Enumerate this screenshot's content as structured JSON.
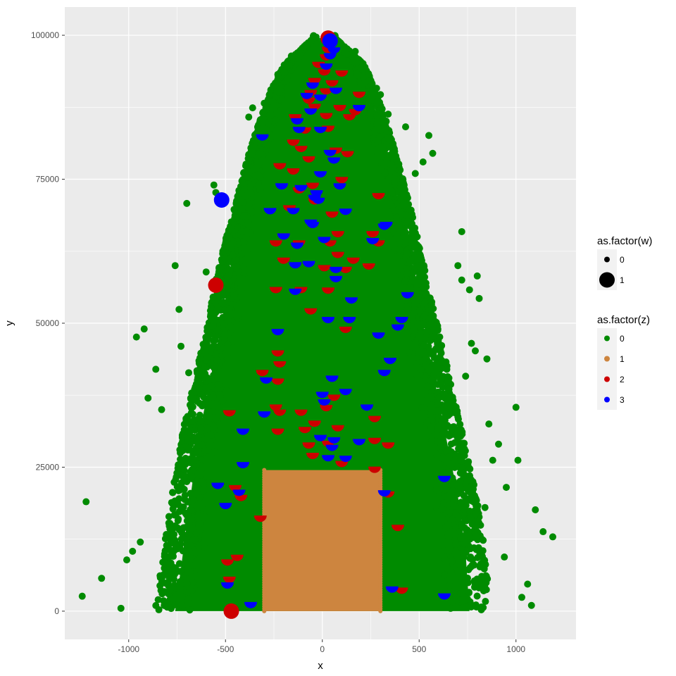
{
  "chart_data": {
    "type": "scatter",
    "title": "",
    "xlabel": "x",
    "ylabel": "y",
    "xlim": [
      -1330,
      1310
    ],
    "ylim": [
      -4900,
      104900
    ],
    "x_ticks": [
      -1000,
      -500,
      0,
      500,
      1000
    ],
    "y_ticks": [
      0,
      25000,
      50000,
      75000,
      100000
    ],
    "x_tick_labels": [
      "-1000",
      "-500",
      "0",
      "500",
      "1000"
    ],
    "y_tick_labels": [
      "0",
      "25000",
      "50000",
      "75000",
      "100000"
    ],
    "grid": true,
    "background": "#ebebeb",
    "legend_placement": "right",
    "colors": {
      "0": "#008b00",
      "1": "#cd853f",
      "2": "#cd0000",
      "3": "#0000ff"
    },
    "legends": [
      {
        "title": "as.factor(w)",
        "kind": "size",
        "entries": [
          {
            "label": "0",
            "size": "small"
          },
          {
            "label": "1",
            "size": "large"
          }
        ]
      },
      {
        "title": "as.factor(z)",
        "kind": "color",
        "entries": [
          {
            "label": "0",
            "color": "#008b00"
          },
          {
            "label": "1",
            "color": "#cd853f"
          },
          {
            "label": "2",
            "color": "#cd0000"
          },
          {
            "label": "3",
            "color": "#0000ff"
          }
        ]
      }
    ],
    "series": [
      {
        "name": "0",
        "shape": "dense green point cloud (tree silhouette), min/max x at each y level",
        "profile": [
          {
            "y": 0,
            "xmin": -760,
            "xmax": 760
          },
          {
            "y": 10000,
            "xmin": -720,
            "xmax": 740
          },
          {
            "y": 20000,
            "xmin": -680,
            "xmax": 700
          },
          {
            "y": 30000,
            "xmin": -640,
            "xmax": 640
          },
          {
            "y": 40000,
            "xmin": -580,
            "xmax": 580
          },
          {
            "y": 50000,
            "xmin": -520,
            "xmax": 520
          },
          {
            "y": 60000,
            "xmin": -470,
            "xmax": 460
          },
          {
            "y": 70000,
            "xmin": -400,
            "xmax": 400
          },
          {
            "y": 80000,
            "xmin": -330,
            "xmax": 330
          },
          {
            "y": 90000,
            "xmin": -240,
            "xmax": 250
          },
          {
            "y": 95000,
            "xmin": -170,
            "xmax": 190
          },
          {
            "y": 99500,
            "xmin": -40,
            "xmax": 60
          }
        ],
        "outliers": [
          [
            -1220,
            19000
          ],
          [
            -1240,
            2600
          ],
          [
            -1140,
            5700
          ],
          [
            -1040,
            500
          ],
          [
            -960,
            47600
          ],
          [
            -940,
            12000
          ],
          [
            -920,
            49000
          ],
          [
            -980,
            10400
          ],
          [
            -1010,
            8900
          ],
          [
            -900,
            37000
          ],
          [
            -860,
            42000
          ],
          [
            -830,
            35000
          ],
          [
            -700,
            70800
          ],
          [
            -760,
            60000
          ],
          [
            -740,
            52400
          ],
          [
            -730,
            46000
          ],
          [
            -690,
            41400
          ],
          [
            -670,
            33000
          ],
          [
            -650,
            29400
          ],
          [
            -560,
            74000
          ],
          [
            -550,
            72700
          ],
          [
            -480,
            64900
          ],
          [
            -600,
            58900
          ],
          [
            1000,
            35400
          ],
          [
            1010,
            26200
          ],
          [
            1190,
            12900
          ],
          [
            1140,
            13800
          ],
          [
            1100,
            17600
          ],
          [
            1060,
            4700
          ],
          [
            1080,
            1000
          ],
          [
            1030,
            2400
          ],
          [
            940,
            9400
          ],
          [
            950,
            21500
          ],
          [
            910,
            29000
          ],
          [
            880,
            26200
          ],
          [
            840,
            18000
          ],
          [
            800,
            58200
          ],
          [
            810,
            54300
          ],
          [
            790,
            45200
          ],
          [
            760,
            55800
          ],
          [
            720,
            57500
          ],
          [
            720,
            65900
          ],
          [
            700,
            60000
          ],
          [
            740,
            40800
          ],
          [
            860,
            32500
          ],
          [
            850,
            43800
          ],
          [
            770,
            46500
          ],
          [
            550,
            82600
          ],
          [
            570,
            79500
          ],
          [
            480,
            76000
          ],
          [
            520,
            78000
          ],
          [
            430,
            84100
          ],
          [
            340,
            86300
          ],
          [
            300,
            89700
          ],
          [
            280,
            90800
          ],
          [
            170,
            97200
          ],
          [
            -160,
            96400
          ],
          [
            -120,
            97100
          ],
          [
            -230,
            93200
          ],
          [
            -360,
            87400
          ],
          [
            -380,
            85800
          ],
          [
            -300,
            88200
          ]
        ]
      },
      {
        "name": "1",
        "shape": "filled rectangle (dense tan points)",
        "xmin": -300,
        "xmax": 300,
        "ymin": 0,
        "ymax": 24500
      },
      {
        "name": "2",
        "points": [
          [
            30,
            99500,
            1
          ],
          [
            -470,
            0,
            1
          ],
          [
            -550,
            56600,
            1
          ],
          [
            30,
            98000,
            0
          ],
          [
            20,
            96700,
            0
          ],
          [
            -20,
            95400,
            0
          ],
          [
            10,
            94100,
            0
          ],
          [
            100,
            93900,
            0
          ],
          [
            -40,
            92600,
            0
          ],
          [
            50,
            92200,
            0
          ],
          [
            -60,
            90500,
            0
          ],
          [
            20,
            90800,
            0
          ],
          [
            190,
            90200,
            0
          ],
          [
            -70,
            89200,
            0
          ],
          [
            -40,
            88100,
            0
          ],
          [
            90,
            87900,
            0
          ],
          [
            170,
            87200,
            0
          ],
          [
            -140,
            86300,
            0
          ],
          [
            20,
            86500,
            0
          ],
          [
            140,
            86300,
            0
          ],
          [
            30,
            84300,
            0
          ],
          [
            -90,
            84000,
            0
          ],
          [
            -150,
            81900,
            0
          ],
          [
            -110,
            80800,
            0
          ],
          [
            70,
            80500,
            0
          ],
          [
            130,
            79900,
            0
          ],
          [
            -70,
            79000,
            0
          ],
          [
            -220,
            77800,
            0
          ],
          [
            -150,
            76900,
            0
          ],
          [
            100,
            75400,
            0
          ],
          [
            -50,
            74400,
            0
          ],
          [
            -120,
            73600,
            0
          ],
          [
            290,
            72600,
            0
          ],
          [
            -40,
            71700,
            0
          ],
          [
            -170,
            70500,
            0
          ],
          [
            50,
            69400,
            0
          ],
          [
            -240,
            64400,
            0
          ],
          [
            -200,
            65600,
            0
          ],
          [
            80,
            66000,
            0
          ],
          [
            260,
            66000,
            0
          ],
          [
            290,
            64400,
            0
          ],
          [
            -120,
            64400,
            0
          ],
          [
            40,
            64400,
            0
          ],
          [
            80,
            62400,
            0
          ],
          [
            -200,
            61400,
            0
          ],
          [
            160,
            61400,
            0
          ],
          [
            240,
            60400,
            0
          ],
          [
            10,
            60100,
            0
          ],
          [
            120,
            59800,
            0
          ],
          [
            -240,
            56300,
            0
          ],
          [
            -110,
            56300,
            0
          ],
          [
            30,
            56200,
            0
          ],
          [
            -60,
            52600,
            0
          ],
          [
            120,
            49400,
            0
          ],
          [
            -230,
            45300,
            0
          ],
          [
            -220,
            43400,
            0
          ],
          [
            -310,
            41900,
            0
          ],
          [
            -230,
            40400,
            0
          ],
          [
            -240,
            35900,
            0
          ],
          [
            -220,
            35000,
            0
          ],
          [
            -110,
            35000,
            0
          ],
          [
            -480,
            34900,
            0
          ],
          [
            20,
            35800,
            0
          ],
          [
            60,
            37600,
            0
          ],
          [
            270,
            33900,
            0
          ],
          [
            -40,
            33100,
            0
          ],
          [
            -230,
            31700,
            0
          ],
          [
            -90,
            32000,
            0
          ],
          [
            80,
            32300,
            0
          ],
          [
            -70,
            29300,
            0
          ],
          [
            30,
            29600,
            0
          ],
          [
            270,
            30100,
            0
          ],
          [
            340,
            29300,
            0
          ],
          [
            -50,
            27500,
            0
          ],
          [
            100,
            26100,
            0
          ],
          [
            270,
            25100,
            0
          ],
          [
            -420,
            20200,
            0
          ],
          [
            -450,
            21900,
            0
          ],
          [
            -320,
            16600,
            0
          ],
          [
            390,
            15000,
            0
          ],
          [
            340,
            20800,
            0
          ],
          [
            -440,
            9800,
            0
          ],
          [
            -490,
            9000,
            0
          ],
          [
            -480,
            6000,
            0
          ],
          [
            410,
            4100,
            0
          ]
        ]
      },
      {
        "name": "3",
        "points": [
          [
            40,
            99000,
            1
          ],
          [
            -520,
            71400,
            1
          ],
          [
            60,
            97900,
            0
          ],
          [
            40,
            96900,
            0
          ],
          [
            20,
            95100,
            0
          ],
          [
            -50,
            91800,
            0
          ],
          [
            70,
            90900,
            0
          ],
          [
            -80,
            90000,
            0
          ],
          [
            -10,
            89700,
            0
          ],
          [
            190,
            87900,
            0
          ],
          [
            -60,
            87300,
            0
          ],
          [
            -130,
            85600,
            0
          ],
          [
            -10,
            84100,
            0
          ],
          [
            -310,
            82800,
            0
          ],
          [
            -120,
            84100,
            0
          ],
          [
            40,
            80100,
            0
          ],
          [
            60,
            78800,
            0
          ],
          [
            -10,
            76400,
            0
          ],
          [
            -210,
            74300,
            0
          ],
          [
            -110,
            74000,
            0
          ],
          [
            90,
            74300,
            0
          ],
          [
            -30,
            73100,
            0
          ],
          [
            -40,
            72300,
            0
          ],
          [
            -20,
            71800,
            0
          ],
          [
            120,
            69900,
            0
          ],
          [
            -270,
            70000,
            0
          ],
          [
            -150,
            70000,
            0
          ],
          [
            -60,
            68000,
            0
          ],
          [
            -50,
            67600,
            0
          ],
          [
            320,
            67300,
            0
          ],
          [
            330,
            67600,
            0
          ],
          [
            -200,
            65600,
            0
          ],
          [
            10,
            65000,
            0
          ],
          [
            -130,
            64000,
            0
          ],
          [
            260,
            64800,
            0
          ],
          [
            -140,
            60600,
            0
          ],
          [
            -70,
            60800,
            0
          ],
          [
            70,
            59800,
            0
          ],
          [
            70,
            58200,
            0
          ],
          [
            440,
            55400,
            0
          ],
          [
            150,
            54500,
            0
          ],
          [
            -140,
            56000,
            0
          ],
          [
            30,
            51100,
            0
          ],
          [
            140,
            51100,
            0
          ],
          [
            410,
            51100,
            0
          ],
          [
            390,
            49800,
            0
          ],
          [
            -230,
            49000,
            0
          ],
          [
            290,
            48400,
            0
          ],
          [
            350,
            44000,
            0
          ],
          [
            320,
            41900,
            0
          ],
          [
            50,
            40900,
            0
          ],
          [
            -290,
            40600,
            0
          ],
          [
            0,
            38100,
            0
          ],
          [
            120,
            38600,
            0
          ],
          [
            10,
            36800,
            0
          ],
          [
            -300,
            34700,
            0
          ],
          [
            230,
            35900,
            0
          ],
          [
            -410,
            31700,
            0
          ],
          [
            -10,
            30600,
            0
          ],
          [
            60,
            30200,
            0
          ],
          [
            190,
            29900,
            0
          ],
          [
            50,
            28900,
            0
          ],
          [
            30,
            27100,
            0
          ],
          [
            120,
            27000,
            0
          ],
          [
            -410,
            25900,
            0
          ],
          [
            -540,
            22300,
            0
          ],
          [
            -430,
            21100,
            0
          ],
          [
            -500,
            18800,
            0
          ],
          [
            320,
            21000,
            0
          ],
          [
            630,
            23500,
            0
          ],
          [
            -370,
            1600,
            0
          ],
          [
            -490,
            5000,
            0
          ],
          [
            360,
            4300,
            0
          ],
          [
            630,
            3100,
            0
          ]
        ]
      }
    ]
  }
}
